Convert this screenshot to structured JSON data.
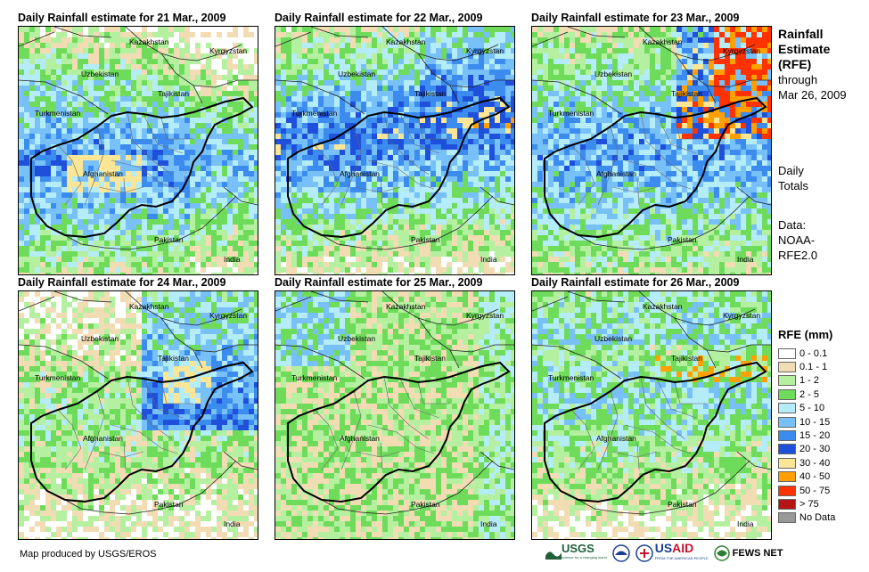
{
  "panels": [
    {
      "id": "mar21",
      "title": "Daily Rainfall estimate for 21 Mar., 2009",
      "cover": "heavy-west"
    },
    {
      "id": "mar22",
      "title": "Daily Rainfall estimate for 22 Mar., 2009",
      "cover": "heavy-north"
    },
    {
      "id": "mar23",
      "title": "Daily Rainfall estimate for 23 Mar., 2009",
      "cover": "heavy-northeast"
    },
    {
      "id": "mar24",
      "title": "Daily Rainfall estimate for 24 Mar., 2009",
      "cover": "light-east"
    },
    {
      "id": "mar25",
      "title": "Daily Rainfall estimate for 25 Mar., 2009",
      "cover": "light"
    },
    {
      "id": "mar26",
      "title": "Daily Rainfall estimate for 26 Mar., 2009",
      "cover": "medium"
    }
  ],
  "map_labels": {
    "kazakhstan": "Kazakhstan",
    "kyrgyzstan": "Kyrgyzstan",
    "uzbekistan": "Uzbekistan",
    "tajikistan": "Tajikistan",
    "turkmenistan": "Turkmenistan",
    "afghanistan": "Afghanistan",
    "pakistan": "Pakistan",
    "india": "India"
  },
  "side_text": {
    "title1": "Rainfall",
    "title2": "Estimate",
    "title3": "(RFE)",
    "through1": "through",
    "through2": "Mar 26, 2009",
    "daily1": "Daily",
    "daily2": "Totals",
    "data1": "Data:",
    "data2": "NOAA-",
    "data3": "RFE2.0"
  },
  "legend": {
    "title": "RFE (mm)",
    "items": [
      {
        "label": "0 - 0.1",
        "color": "#ffffff"
      },
      {
        "label": "0.1 - 1",
        "color": "#f2dcb4"
      },
      {
        "label": "1 - 2",
        "color": "#b4f0a0"
      },
      {
        "label": "2 - 5",
        "color": "#6edc5a"
      },
      {
        "label": "5 - 10",
        "color": "#b4ecf8"
      },
      {
        "label": "10 - 15",
        "color": "#78c0f8"
      },
      {
        "label": "15 - 20",
        "color": "#3c8cf0"
      },
      {
        "label": "20 - 30",
        "color": "#1e50dc"
      },
      {
        "label": "30 - 40",
        "color": "#fae696"
      },
      {
        "label": "40 - 50",
        "color": "#ffa000"
      },
      {
        "label": "50 - 75",
        "color": "#ff3200"
      },
      {
        "label": "> 75",
        "color": "#b41414"
      },
      {
        "label": "No Data",
        "color": "#999999"
      }
    ]
  },
  "footer": {
    "credit": "Map produced by USGS/EROS",
    "usgs": "USGS",
    "usgs_tag": "science for a changing world",
    "usaid": "USAID",
    "usaid_tag": "FROM THE AMERICAN PEOPLE",
    "fewsnet": "FEWS NET"
  }
}
